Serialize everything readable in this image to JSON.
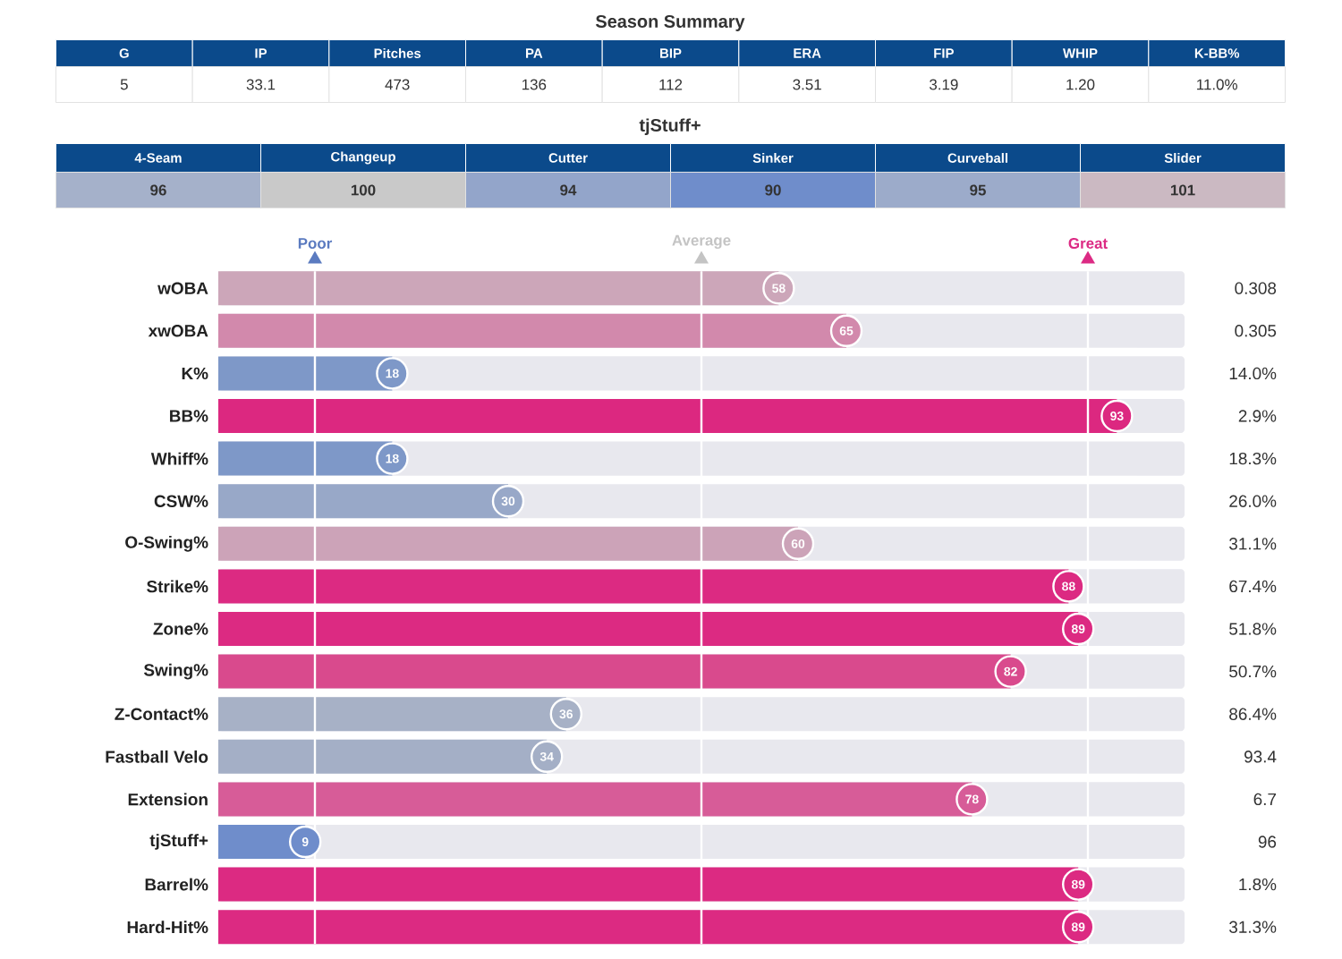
{
  "chart_data": [
    {
      "type": "other",
      "title": "Season Summary",
      "categories": [
        "G",
        "IP",
        "Pitches",
        "PA",
        "BIP",
        "ERA",
        "FIP",
        "WHIP",
        "K-BB%"
      ],
      "value_labels": [
        "5",
        "33.1",
        "473",
        "136",
        "112",
        "3.51",
        "3.19",
        "1.20",
        "11.0%"
      ]
    },
    {
      "type": "other",
      "title": "tjStuff+",
      "categories": [
        "4-Seam",
        "Changeup",
        "Cutter",
        "Sinker",
        "Curveball",
        "Slider"
      ],
      "value_labels": [
        "96",
        "100",
        "94",
        "90",
        "95",
        "101"
      ]
    },
    {
      "type": "bar",
      "orientation": "horizontal",
      "tick_labels": "y",
      "data_labels": true,
      "categories": [
        "wOBA",
        "xwOBA",
        "K%",
        "BB%",
        "Whiff%",
        "CSW%",
        "O-Swing%",
        "Strike%",
        "Zone%",
        "Swing%",
        "Z-Contact%",
        "Fastball Velo",
        "Extension",
        "tjStuff+",
        "Barrel%",
        "Hard-Hit%"
      ],
      "values": [
        58,
        65,
        18,
        93,
        18,
        30,
        60,
        88,
        89,
        82,
        36,
        34,
        78,
        9,
        89,
        89
      ],
      "colors": [
        "#cca6b9",
        "#d289ac",
        "#7e98c8",
        "#dc2880",
        "#7e98c8",
        "#98a8c8",
        "#cca3b8",
        "#dc2a82",
        "#dc2a82",
        "#d94a8d",
        "#a7b1c6",
        "#a4afc6",
        "#d75c98",
        "#6f8dcb",
        "#dc2a82",
        "#dc2a82"
      ],
      "xlim": [
        0,
        100
      ],
      "ref_lines": [
        {
          "axis": "x",
          "value": 10,
          "label": "Poor",
          "color": "#ffffff"
        },
        {
          "axis": "x",
          "value": 50,
          "label": "Average",
          "color": "#ffffff"
        },
        {
          "axis": "x",
          "value": 90,
          "label": "Great",
          "color": "#ffffff"
        }
      ],
      "annotations": [
        "0.308",
        "0.305",
        "14.0%",
        "2.9%",
        "18.3%",
        "26.0%",
        "31.1%",
        "67.4%",
        "51.8%",
        "50.7%",
        "86.4%",
        "93.4",
        "6.7",
        "96",
        "1.8%",
        "31.3%"
      ]
    }
  ]
}
